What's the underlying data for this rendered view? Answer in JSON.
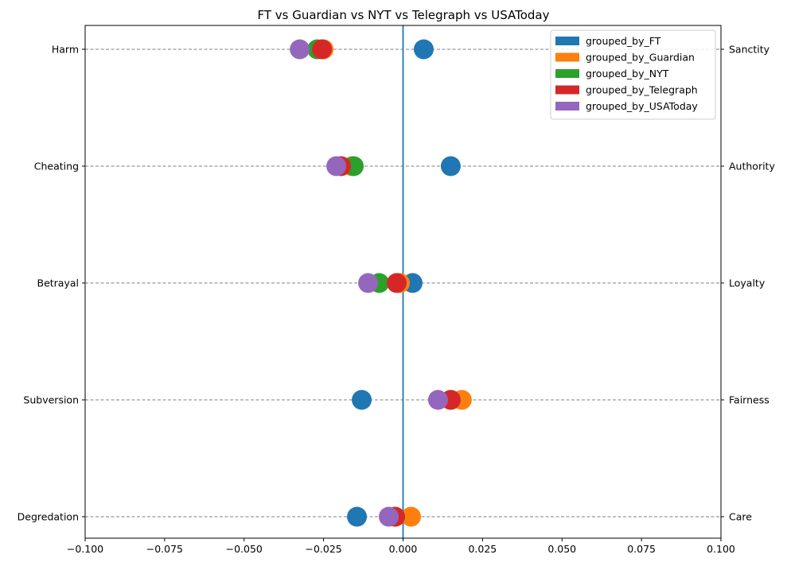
{
  "chart_data": {
    "type": "scatter",
    "title": "FT vs Guardian vs NYT vs Telegraph vs USAToday",
    "xlim": [
      -0.1,
      0.1
    ],
    "x_ticks": [
      -0.1,
      -0.075,
      -0.05,
      -0.025,
      0.0,
      0.025,
      0.05,
      0.075,
      0.1
    ],
    "x_tick_labels": [
      "−0.100",
      "−0.075",
      "−0.050",
      "−0.025",
      "0.000",
      "0.025",
      "0.050",
      "0.075",
      "0.100"
    ],
    "left_labels": [
      "Harm",
      "Cheating",
      "Betrayal",
      "Subversion",
      "Degredation"
    ],
    "right_labels": [
      "Sanctity",
      "Authority",
      "Loyalty",
      "Fairness",
      "Care"
    ],
    "grid": "horizontal dashed at each category",
    "vertical_line_at": 0.0,
    "legend_position": "top-right",
    "series": [
      {
        "name": "grouped_by_FT",
        "color": "#1f77b4",
        "values": [
          0.0065,
          0.015,
          0.003,
          -0.013,
          -0.0145
        ]
      },
      {
        "name": "grouped_by_Guardian",
        "color": "#ff7f0e",
        "values": [
          -0.025,
          -0.016,
          -0.001,
          0.0185,
          0.0025
        ]
      },
      {
        "name": "grouped_by_NYT",
        "color": "#2ca02c",
        "values": [
          -0.027,
          -0.0155,
          -0.0075,
          0.015,
          -0.0025
        ]
      },
      {
        "name": "grouped_by_Telegraph",
        "color": "#d62728",
        "values": [
          -0.0255,
          -0.0195,
          -0.002,
          0.015,
          -0.0025
        ]
      },
      {
        "name": "grouped_by_USAToday",
        "color": "#9467bd",
        "values": [
          -0.0325,
          -0.021,
          -0.011,
          0.011,
          -0.0045
        ]
      }
    ]
  }
}
